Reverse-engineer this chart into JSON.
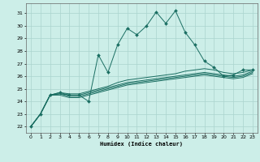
{
  "xlabel": "Humidex (Indice chaleur)",
  "bg_color": "#cceee8",
  "grid_color": "#aad4ce",
  "line_color": "#1a6e62",
  "xlim": [
    -0.5,
    23.5
  ],
  "ylim": [
    21.5,
    31.8
  ],
  "xticks": [
    0,
    1,
    2,
    3,
    4,
    5,
    6,
    7,
    8,
    9,
    10,
    11,
    12,
    13,
    14,
    15,
    16,
    17,
    18,
    19,
    20,
    21,
    22,
    23
  ],
  "yticks": [
    22,
    23,
    24,
    25,
    26,
    27,
    28,
    29,
    30,
    31
  ],
  "line1_x": [
    0,
    1,
    2,
    3,
    4,
    5,
    6,
    7,
    8,
    9,
    10,
    11,
    12,
    13,
    14,
    15,
    16,
    17,
    18,
    19,
    20,
    21,
    22,
    23
  ],
  "line1_y": [
    22.0,
    23.0,
    24.5,
    24.7,
    24.5,
    24.5,
    24.0,
    27.7,
    26.3,
    28.5,
    29.8,
    29.3,
    30.0,
    31.1,
    30.2,
    31.2,
    29.5,
    28.5,
    27.2,
    26.7,
    26.0,
    26.1,
    26.5,
    26.5
  ],
  "line2_x": [
    0,
    1,
    2,
    3,
    4,
    5,
    6,
    7,
    8,
    9,
    10,
    11,
    12,
    13,
    14,
    15,
    16,
    17,
    18,
    19,
    20,
    21,
    22,
    23
  ],
  "line2_y": [
    22.0,
    23.0,
    24.5,
    24.7,
    24.6,
    24.6,
    24.8,
    25.0,
    25.2,
    25.5,
    25.7,
    25.8,
    25.9,
    26.0,
    26.1,
    26.2,
    26.4,
    26.5,
    26.6,
    26.5,
    26.3,
    26.2,
    26.3,
    26.5
  ],
  "line3_x": [
    0,
    1,
    2,
    3,
    4,
    5,
    6,
    7,
    8,
    9,
    10,
    11,
    12,
    13,
    14,
    15,
    16,
    17,
    18,
    19,
    20,
    21,
    22,
    23
  ],
  "line3_y": [
    22.0,
    23.0,
    24.5,
    24.6,
    24.5,
    24.5,
    24.7,
    24.9,
    25.1,
    25.3,
    25.5,
    25.6,
    25.7,
    25.8,
    25.9,
    26.0,
    26.1,
    26.2,
    26.3,
    26.2,
    26.1,
    26.0,
    26.1,
    26.4
  ],
  "line4_x": [
    0,
    1,
    2,
    3,
    4,
    5,
    6,
    7,
    8,
    9,
    10,
    11,
    12,
    13,
    14,
    15,
    16,
    17,
    18,
    19,
    20,
    21,
    22,
    23
  ],
  "line4_y": [
    22.0,
    23.0,
    24.5,
    24.6,
    24.4,
    24.4,
    24.6,
    24.8,
    25.0,
    25.2,
    25.4,
    25.5,
    25.6,
    25.7,
    25.8,
    25.9,
    26.0,
    26.1,
    26.2,
    26.1,
    26.0,
    25.9,
    26.0,
    26.3
  ],
  "line5_x": [
    0,
    1,
    2,
    3,
    4,
    5,
    6,
    7,
    8,
    9,
    10,
    11,
    12,
    13,
    14,
    15,
    16,
    17,
    18,
    19,
    20,
    21,
    22,
    23
  ],
  "line5_y": [
    22.0,
    23.0,
    24.5,
    24.5,
    24.3,
    24.3,
    24.5,
    24.7,
    24.9,
    25.1,
    25.3,
    25.4,
    25.5,
    25.6,
    25.7,
    25.8,
    25.9,
    26.0,
    26.1,
    26.0,
    25.9,
    25.8,
    25.9,
    26.2
  ]
}
